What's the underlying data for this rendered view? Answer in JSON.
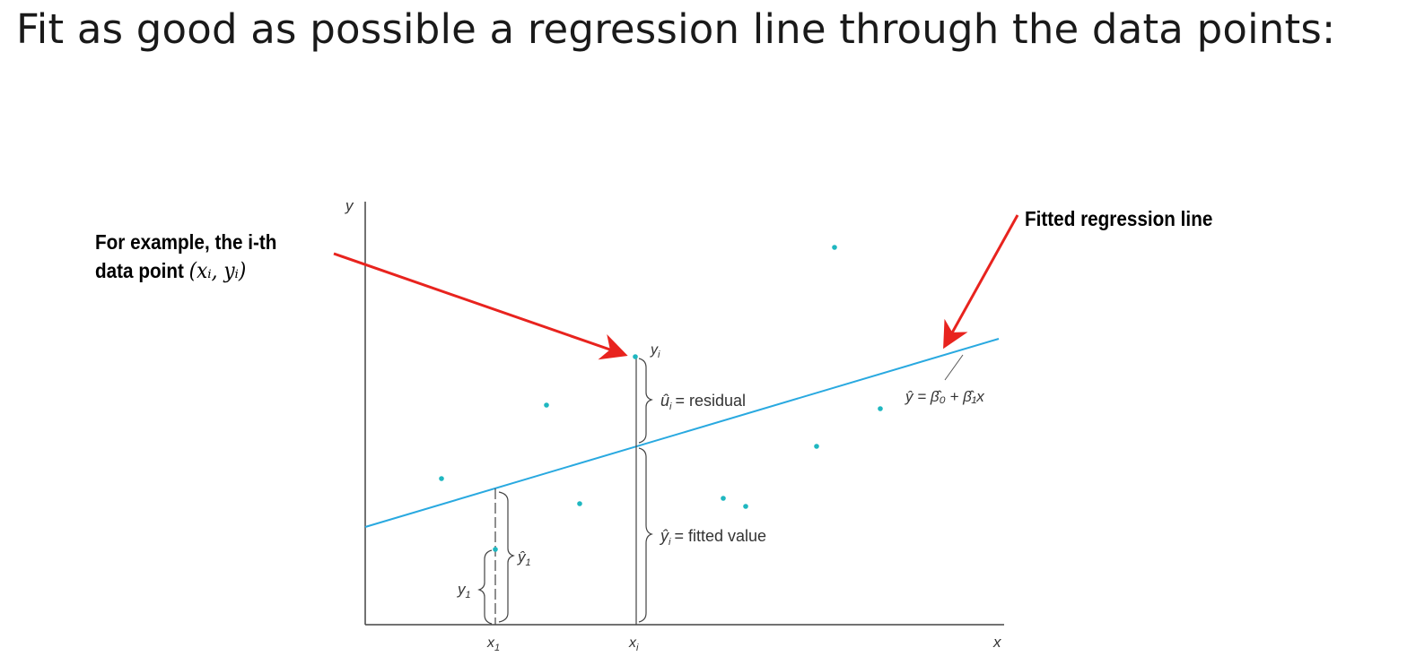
{
  "title": "Fit as good as possible a regression line through the data points:",
  "callouts": {
    "example_line1": "For example, the i-th",
    "example_line2": "data point",
    "example_math": "(xᵢ, yᵢ)",
    "fitted": "Fitted regression line"
  },
  "axes": {
    "y": "y",
    "x": "x",
    "x1": "x",
    "x1_sub": "1",
    "xi": "x",
    "xi_sub": "i"
  },
  "labels": {
    "yi": "y",
    "yi_sub": "i",
    "residual_sym": "û",
    "residual_sub": "i",
    "residual_text": "= residual",
    "fitted_sym": "ŷ",
    "fitted_sub": "i",
    "fitted_text": "= fitted value",
    "yhat1": "ŷ",
    "yhat1_sub": "1",
    "y1": "y",
    "y1_sub": "1",
    "equation": "ŷ = β̂₀ + β̂₁x"
  },
  "colors": {
    "line": "#29a9e0",
    "point": "#1fb7c0",
    "arrow": "#e8231e",
    "axis": "#444444"
  }
}
